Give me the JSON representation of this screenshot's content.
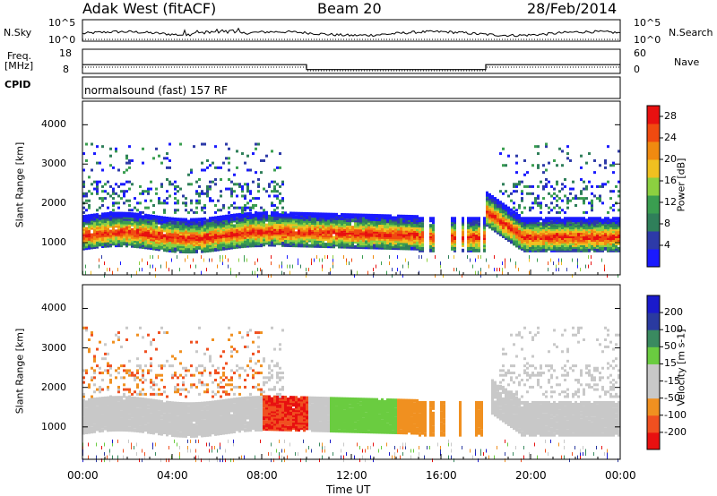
{
  "header": {
    "station": "Adak West (fitACF)",
    "beam": "Beam 20",
    "date": "28/Feb/2014"
  },
  "aux_panels": {
    "nsky": {
      "label": "N.Sky",
      "ticks": [
        "10^5",
        "10^0"
      ]
    },
    "nsearch": {
      "label": "N.Search",
      "ticks": [
        "10^5",
        "10^0"
      ]
    },
    "freq": {
      "label_line1": "Freq.",
      "label_line2": "[MHz]",
      "ticks": [
        "18",
        "8"
      ]
    },
    "nave": {
      "label": "Nave",
      "ticks": [
        "60",
        "0"
      ]
    },
    "cpid": {
      "label": "CPID",
      "text": "normalsound (fast) 157 RF"
    }
  },
  "colors": {
    "power": [
      "#1a1aff",
      "#2d3aa8",
      "#2f7f5a",
      "#3a9e50",
      "#8cd040",
      "#f0c020",
      "#f08a10",
      "#f04a10",
      "#e81010"
    ],
    "velocity": [
      "#e81010",
      "#f05020",
      "#f09020",
      "#c8c8c8",
      "#c8c8c8",
      "#6acc40",
      "#3a8a60",
      "#2a3aa0",
      "#1a1acc"
    ]
  },
  "chart_data": [
    {
      "type": "heatmap",
      "name": "power",
      "ylabel": "Slant Range [km]",
      "ylim": [
        180,
        4600
      ],
      "yticks": [
        1000,
        2000,
        3000,
        4000
      ],
      "colorbar": {
        "label": "Power [dB]",
        "ticks": [
          4,
          8,
          12,
          16,
          20,
          24,
          28
        ],
        "range": [
          0,
          30
        ]
      }
    },
    {
      "type": "heatmap",
      "name": "velocity",
      "ylabel": "Slant Range [km]",
      "ylim": [
        180,
        4600
      ],
      "yticks": [
        1000,
        2000,
        3000,
        4000
      ],
      "colorbar": {
        "label": "Velocity [m s-1]",
        "ticks": [
          "200",
          "100",
          "50",
          "15",
          "-15",
          "-50",
          "-100",
          "-200"
        ]
      }
    }
  ],
  "xaxis": {
    "label": "Time UT",
    "ticks": [
      "00:00",
      "04:00",
      "08:00",
      "12:00",
      "16:00",
      "20:00",
      "00:00"
    ],
    "range_hours": [
      0,
      24
    ]
  }
}
